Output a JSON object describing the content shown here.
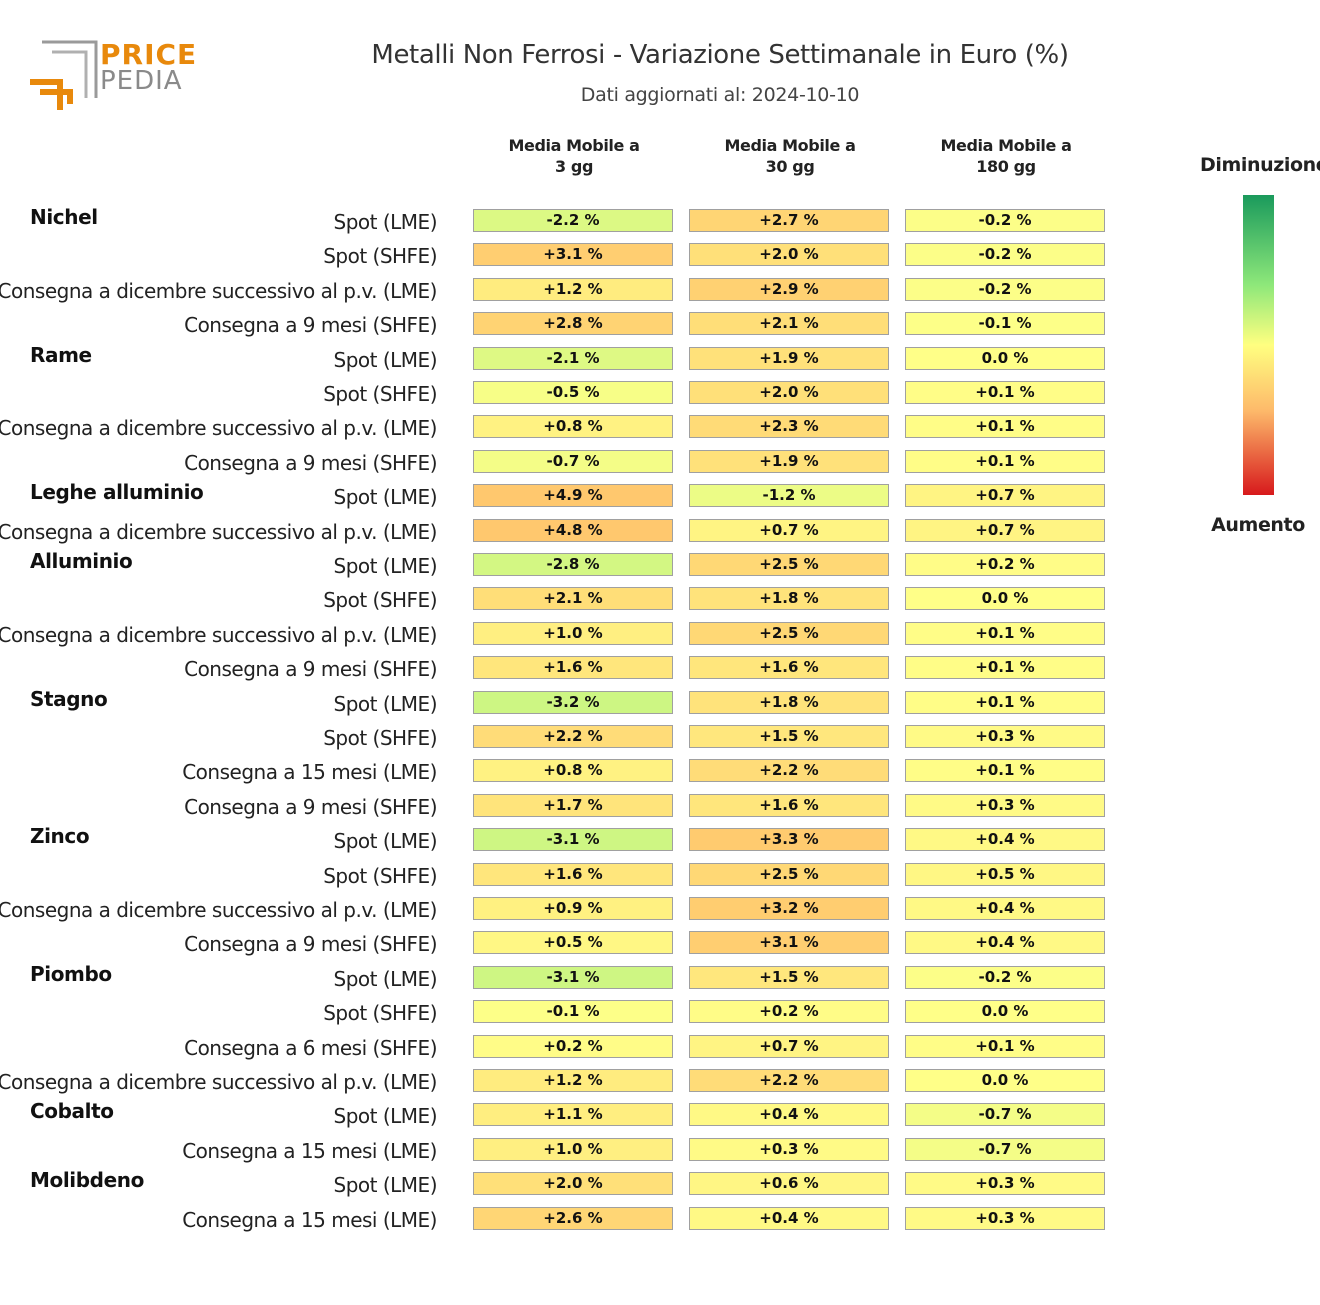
{
  "logo": {
    "line1": "PRICE",
    "line2": "PEDIA"
  },
  "colors": {
    "logo_orange": "#e8890c",
    "logo_gray": "#8a8a8a"
  },
  "chart_data": {
    "type": "table",
    "title": "Metalli Non Ferrosi - Variazione Settimanale in Euro (%)",
    "subtitle": "Dati aggiornati al: 2024-10-10",
    "columns": [
      "Media Mobile a\n3 gg",
      "Media Mobile a\n30 gg",
      "Media Mobile a\n180 gg"
    ],
    "legend": {
      "top": "Diminuzione",
      "bottom": "Aumento",
      "colors": [
        "#1a9a5c",
        "#8ee87a",
        "#ffff80",
        "#fdb96a",
        "#d7191c"
      ]
    },
    "groups": [
      {
        "name": "Nichel",
        "rows": [
          {
            "label": "Spot (LME)",
            "values": [
              -2.2,
              2.7,
              -0.2
            ]
          },
          {
            "label": "Spot (SHFE)",
            "values": [
              3.1,
              2.0,
              -0.2
            ]
          },
          {
            "label": "Consegna a dicembre successivo al p.v. (LME)",
            "values": [
              1.2,
              2.9,
              -0.2
            ]
          },
          {
            "label": "Consegna a 9 mesi (SHFE)",
            "values": [
              2.8,
              2.1,
              -0.1
            ]
          }
        ]
      },
      {
        "name": "Rame",
        "rows": [
          {
            "label": "Spot (LME)",
            "values": [
              -2.1,
              1.9,
              0.0
            ]
          },
          {
            "label": "Spot (SHFE)",
            "values": [
              -0.5,
              2.0,
              0.1
            ]
          },
          {
            "label": "Consegna a dicembre successivo al p.v. (LME)",
            "values": [
              0.8,
              2.3,
              0.1
            ]
          },
          {
            "label": "Consegna a 9 mesi (SHFE)",
            "values": [
              -0.7,
              1.9,
              0.1
            ]
          }
        ]
      },
      {
        "name": "Leghe alluminio",
        "rows": [
          {
            "label": "Spot (LME)",
            "values": [
              4.9,
              -1.2,
              0.7
            ]
          },
          {
            "label": "Consegna a dicembre successivo al p.v. (LME)",
            "values": [
              4.8,
              0.7,
              0.7
            ]
          }
        ]
      },
      {
        "name": "Alluminio",
        "rows": [
          {
            "label": "Spot (LME)",
            "values": [
              -2.8,
              2.5,
              0.2
            ]
          },
          {
            "label": "Spot (SHFE)",
            "values": [
              2.1,
              1.8,
              0.0
            ]
          },
          {
            "label": "Consegna a dicembre successivo al p.v. (LME)",
            "values": [
              1.0,
              2.5,
              0.1
            ]
          },
          {
            "label": "Consegna a 9 mesi (SHFE)",
            "values": [
              1.6,
              1.6,
              0.1
            ]
          }
        ]
      },
      {
        "name": "Stagno",
        "rows": [
          {
            "label": "Spot (LME)",
            "values": [
              -3.2,
              1.8,
              0.1
            ]
          },
          {
            "label": "Spot (SHFE)",
            "values": [
              2.2,
              1.5,
              0.3
            ]
          },
          {
            "label": "Consegna a 15 mesi (LME)",
            "values": [
              0.8,
              2.2,
              0.1
            ]
          },
          {
            "label": "Consegna a 9 mesi (SHFE)",
            "values": [
              1.7,
              1.6,
              0.3
            ]
          }
        ]
      },
      {
        "name": "Zinco",
        "rows": [
          {
            "label": "Spot (LME)",
            "values": [
              -3.1,
              3.3,
              0.4
            ]
          },
          {
            "label": "Spot (SHFE)",
            "values": [
              1.6,
              2.5,
              0.5
            ]
          },
          {
            "label": "Consegna a dicembre successivo al p.v. (LME)",
            "values": [
              0.9,
              3.2,
              0.4
            ]
          },
          {
            "label": "Consegna a 9 mesi (SHFE)",
            "values": [
              0.5,
              3.1,
              0.4
            ]
          }
        ]
      },
      {
        "name": "Piombo",
        "rows": [
          {
            "label": "Spot (LME)",
            "values": [
              -3.1,
              1.5,
              -0.2
            ]
          },
          {
            "label": "Spot (SHFE)",
            "values": [
              -0.1,
              0.2,
              0.0
            ]
          },
          {
            "label": "Consegna a 6 mesi (SHFE)",
            "values": [
              0.2,
              0.7,
              0.1
            ]
          },
          {
            "label": "Consegna a dicembre successivo al p.v. (LME)",
            "values": [
              1.2,
              2.2,
              0.0
            ]
          }
        ]
      },
      {
        "name": "Cobalto",
        "rows": [
          {
            "label": "Spot (LME)",
            "values": [
              1.1,
              0.4,
              -0.7
            ]
          },
          {
            "label": "Consegna a 15 mesi (LME)",
            "values": [
              1.0,
              0.3,
              -0.7
            ]
          }
        ]
      },
      {
        "name": "Molibdeno",
        "rows": [
          {
            "label": "Spot (LME)",
            "values": [
              2.0,
              0.6,
              0.3
            ]
          },
          {
            "label": "Consegna a 15 mesi (LME)",
            "values": [
              2.6,
              0.4,
              0.3
            ]
          }
        ]
      }
    ]
  }
}
